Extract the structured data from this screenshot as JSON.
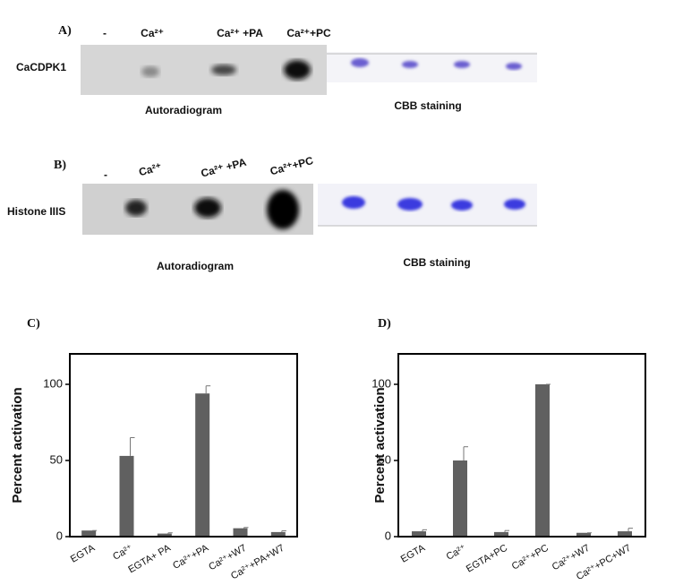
{
  "panels": [
    {
      "label": "A)",
      "lanes": [
        "-",
        "Ca²⁺",
        "Ca²⁺ +PA",
        "Ca²⁺+PC"
      ],
      "row_label": "CaCDPK1",
      "left_caption": "Autoradiogram",
      "right_caption": "CBB staining"
    },
    {
      "label": "B)",
      "lanes": [
        "-",
        "Ca²⁺",
        "Ca²⁺ +PA",
        "Ca²⁺+PC"
      ],
      "row_label": "Histone IIIS",
      "left_caption": "Autoradiogram",
      "right_caption": "CBB staining"
    }
  ],
  "chart_data": [
    {
      "type": "bar",
      "panel_label": "C)",
      "ylabel": "Percent activation",
      "categories": [
        "EGTA",
        "Ca²⁺",
        "EGTA+ PA",
        "Ca²⁺+PA",
        "Ca²⁺+W7",
        "Ca²⁺+PA+W7"
      ],
      "values": [
        4,
        53,
        2,
        94,
        5.5,
        3
      ],
      "errors": [
        0,
        12,
        0.5,
        5,
        0.5,
        0.8
      ],
      "color": "#606060",
      "ylim": [
        0,
        120
      ],
      "yticks": [
        0,
        50,
        100
      ]
    },
    {
      "type": "bar",
      "panel_label": "D)",
      "ylabel": "Percent activation",
      "categories": [
        "EGTA",
        "Ca²⁺",
        "EGTA+PC",
        "Ca²⁺+PC",
        "Ca²⁺+W7",
        "Ca²⁺+PC+W7"
      ],
      "values": [
        3.5,
        50,
        3,
        100,
        2.5,
        3.5
      ],
      "errors": [
        1,
        9,
        1,
        0,
        0,
        2
      ],
      "color": "#606060",
      "ylim": [
        0,
        120
      ],
      "yticks": [
        0,
        50,
        100
      ]
    }
  ]
}
